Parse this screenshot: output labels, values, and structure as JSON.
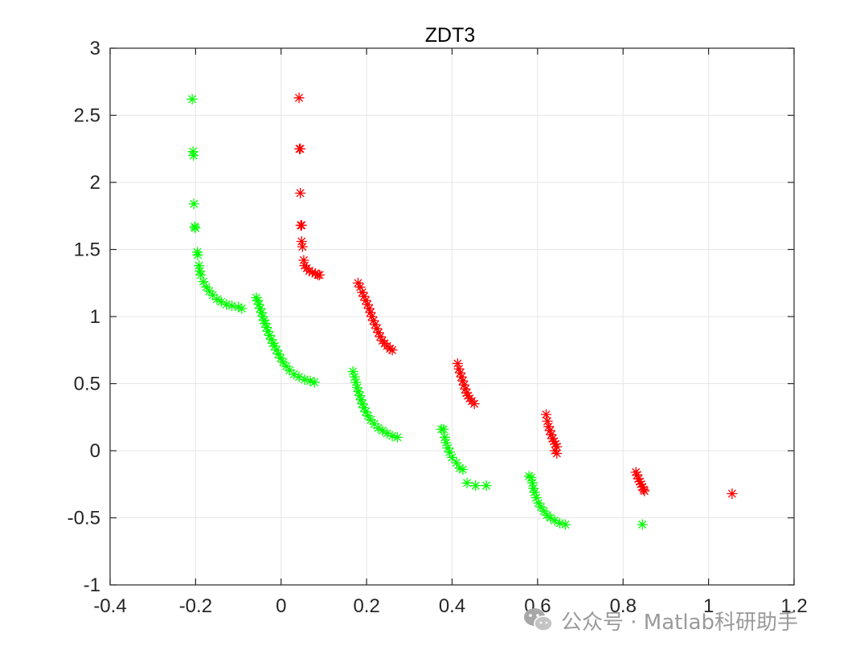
{
  "chart_data": {
    "type": "scatter",
    "title": "ZDT3",
    "xlabel": "",
    "ylabel": "",
    "xlim": [
      -0.4,
      1.2
    ],
    "ylim": [
      -1,
      3
    ],
    "xticks": [
      -0.4,
      -0.2,
      0,
      0.2,
      0.4,
      0.6,
      0.8,
      1,
      1.2
    ],
    "xtick_labels": [
      "-0.4",
      "-0.2",
      "0",
      "0.2",
      "0.4",
      "0.6",
      "0.8",
      "1",
      "1.2"
    ],
    "yticks": [
      -1,
      -0.5,
      0,
      0.5,
      1,
      1.5,
      2,
      2.5,
      3
    ],
    "ytick_labels": [
      "-1",
      "-0.5",
      "0",
      "0.5",
      "1",
      "1.5",
      "2",
      "2.5",
      "3"
    ],
    "grid": true,
    "marker": "asterisk",
    "series": [
      {
        "color": "#00ff00",
        "points": [
          [
            -0.208,
            2.62
          ],
          [
            -0.206,
            2.23
          ],
          [
            -0.205,
            2.2
          ],
          [
            -0.204,
            1.84
          ],
          [
            -0.202,
            1.67
          ],
          [
            -0.201,
            1.66
          ],
          [
            -0.196,
            1.48
          ],
          [
            -0.195,
            1.46
          ],
          [
            -0.192,
            1.38
          ],
          [
            -0.19,
            1.34
          ],
          [
            -0.188,
            1.31
          ],
          [
            -0.182,
            1.26
          ],
          [
            -0.175,
            1.22
          ],
          [
            -0.168,
            1.19
          ],
          [
            -0.16,
            1.16
          ],
          [
            -0.15,
            1.13
          ],
          [
            -0.14,
            1.11
          ],
          [
            -0.128,
            1.09
          ],
          [
            -0.115,
            1.08
          ],
          [
            -0.1,
            1.07
          ],
          [
            -0.092,
            1.06
          ],
          [
            -0.058,
            1.14
          ],
          [
            -0.055,
            1.12
          ],
          [
            -0.052,
            1.09
          ],
          [
            -0.049,
            1.06
          ],
          [
            -0.046,
            1.03
          ],
          [
            -0.043,
            1.0
          ],
          [
            -0.04,
            0.97
          ],
          [
            -0.037,
            0.95
          ],
          [
            -0.034,
            0.92
          ],
          [
            -0.031,
            0.89
          ],
          [
            -0.027,
            0.86
          ],
          [
            -0.023,
            0.83
          ],
          [
            -0.019,
            0.8
          ],
          [
            -0.015,
            0.78
          ],
          [
            -0.011,
            0.75
          ],
          [
            -0.006,
            0.72
          ],
          [
            -0.001,
            0.69
          ],
          [
            0.005,
            0.66
          ],
          [
            0.012,
            0.63
          ],
          [
            0.02,
            0.6
          ],
          [
            0.03,
            0.57
          ],
          [
            0.042,
            0.55
          ],
          [
            0.055,
            0.53
          ],
          [
            0.068,
            0.52
          ],
          [
            0.078,
            0.51
          ],
          [
            0.168,
            0.59
          ],
          [
            0.172,
            0.55
          ],
          [
            0.175,
            0.51
          ],
          [
            0.178,
            0.47
          ],
          [
            0.181,
            0.44
          ],
          [
            0.184,
            0.41
          ],
          [
            0.187,
            0.38
          ],
          [
            0.19,
            0.35
          ],
          [
            0.194,
            0.32
          ],
          [
            0.198,
            0.29
          ],
          [
            0.203,
            0.26
          ],
          [
            0.21,
            0.23
          ],
          [
            0.218,
            0.2
          ],
          [
            0.227,
            0.17
          ],
          [
            0.237,
            0.15
          ],
          [
            0.248,
            0.13
          ],
          [
            0.26,
            0.11
          ],
          [
            0.272,
            0.1
          ],
          [
            0.375,
            0.16
          ],
          [
            0.38,
            0.16
          ],
          [
            0.383,
            0.1
          ],
          [
            0.386,
            0.06
          ],
          [
            0.39,
            0.02
          ],
          [
            0.394,
            -0.01
          ],
          [
            0.4,
            -0.05
          ],
          [
            0.41,
            -0.09
          ],
          [
            0.418,
            -0.13
          ],
          [
            0.425,
            -0.14
          ],
          [
            0.435,
            -0.24
          ],
          [
            0.455,
            -0.26
          ],
          [
            0.48,
            -0.26
          ],
          [
            0.58,
            -0.19
          ],
          [
            0.585,
            -0.2
          ],
          [
            0.588,
            -0.24
          ],
          [
            0.59,
            -0.28
          ],
          [
            0.593,
            -0.31
          ],
          [
            0.597,
            -0.35
          ],
          [
            0.602,
            -0.39
          ],
          [
            0.608,
            -0.42
          ],
          [
            0.615,
            -0.45
          ],
          [
            0.622,
            -0.48
          ],
          [
            0.63,
            -0.5
          ],
          [
            0.64,
            -0.52
          ],
          [
            0.652,
            -0.54
          ],
          [
            0.665,
            -0.55
          ],
          [
            0.845,
            -0.55
          ]
        ]
      },
      {
        "color": "#ff0000",
        "points": [
          [
            0.042,
            2.63
          ],
          [
            0.043,
            2.25
          ],
          [
            0.045,
            2.25
          ],
          [
            0.045,
            1.92
          ],
          [
            0.046,
            1.68
          ],
          [
            0.048,
            1.68
          ],
          [
            0.048,
            1.56
          ],
          [
            0.05,
            1.52
          ],
          [
            0.053,
            1.42
          ],
          [
            0.055,
            1.38
          ],
          [
            0.06,
            1.36
          ],
          [
            0.066,
            1.34
          ],
          [
            0.073,
            1.33
          ],
          [
            0.08,
            1.32
          ],
          [
            0.086,
            1.31
          ],
          [
            0.09,
            1.31
          ],
          [
            0.18,
            1.25
          ],
          [
            0.185,
            1.22
          ],
          [
            0.19,
            1.18
          ],
          [
            0.194,
            1.15
          ],
          [
            0.198,
            1.12
          ],
          [
            0.202,
            1.09
          ],
          [
            0.206,
            1.06
          ],
          [
            0.209,
            1.03
          ],
          [
            0.212,
            1.0
          ],
          [
            0.216,
            0.97
          ],
          [
            0.22,
            0.94
          ],
          [
            0.224,
            0.91
          ],
          [
            0.228,
            0.88
          ],
          [
            0.232,
            0.85
          ],
          [
            0.237,
            0.82
          ],
          [
            0.242,
            0.8
          ],
          [
            0.248,
            0.78
          ],
          [
            0.255,
            0.76
          ],
          [
            0.26,
            0.75
          ],
          [
            0.413,
            0.65
          ],
          [
            0.416,
            0.61
          ],
          [
            0.419,
            0.58
          ],
          [
            0.422,
            0.55
          ],
          [
            0.425,
            0.52
          ],
          [
            0.428,
            0.49
          ],
          [
            0.431,
            0.46
          ],
          [
            0.434,
            0.43
          ],
          [
            0.437,
            0.41
          ],
          [
            0.441,
            0.39
          ],
          [
            0.446,
            0.37
          ],
          [
            0.452,
            0.35
          ],
          [
            0.62,
            0.27
          ],
          [
            0.623,
            0.22
          ],
          [
            0.626,
            0.18
          ],
          [
            0.629,
            0.15
          ],
          [
            0.632,
            0.12
          ],
          [
            0.635,
            0.09
          ],
          [
            0.638,
            0.07
          ],
          [
            0.642,
            0.05
          ],
          [
            0.645,
            0.03
          ],
          [
            0.641,
            0.0
          ],
          [
            0.645,
            -0.02
          ],
          [
            0.83,
            -0.16
          ],
          [
            0.833,
            -0.18
          ],
          [
            0.836,
            -0.21
          ],
          [
            0.839,
            -0.23
          ],
          [
            0.842,
            -0.25
          ],
          [
            0.845,
            -0.27
          ],
          [
            0.848,
            -0.29
          ],
          [
            0.85,
            -0.3
          ],
          [
            1.055,
            -0.32
          ]
        ]
      }
    ]
  },
  "watermark": {
    "text": "公众号 · Matlab科研助手",
    "icon": "wechat-icon"
  }
}
